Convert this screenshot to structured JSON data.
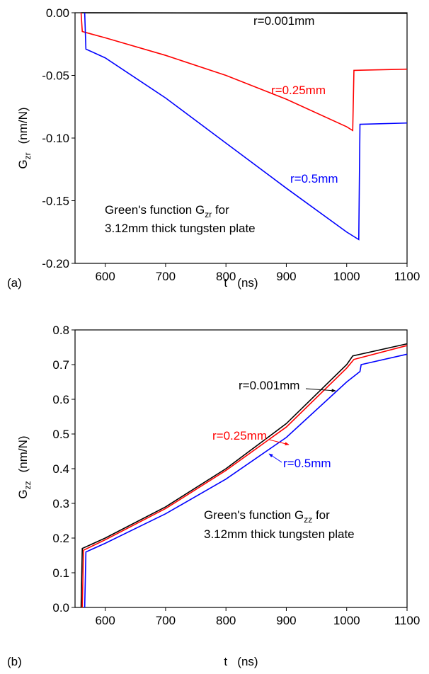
{
  "chart_data": [
    {
      "type": "line",
      "panel_label": "(a)",
      "xlabel": "t   (ns)",
      "ylabel": {
        "symbol": "G",
        "subscript": "zr",
        "unit": "(nm/N)"
      },
      "xlim": [
        550,
        1100
      ],
      "xticks": [
        600,
        700,
        800,
        900,
        1000,
        1100
      ],
      "ylim": [
        -0.2,
        0
      ],
      "yticks": [
        {
          "value": -0.2,
          "label": "-0.20"
        },
        {
          "value": -0.15,
          "label": "-0.15"
        },
        {
          "value": -0.1,
          "label": "-0.10"
        },
        {
          "value": -0.05,
          "label": "-0.05"
        },
        {
          "value": 0,
          "label": "0.00"
        }
      ],
      "series": [
        {
          "name": "r=0.001mm",
          "color": "#000000",
          "x": [
            560,
            1010,
            1100
          ],
          "values": [
            0,
            -0.0005,
            -0.0005
          ]
        },
        {
          "name": "r=0.25mm",
          "color": "#ff0000",
          "x": [
            560,
            562,
            600,
            700,
            800,
            900,
            1000,
            1010,
            1012,
            1100
          ],
          "values": [
            0,
            -0.015,
            -0.02,
            -0.034,
            -0.05,
            -0.069,
            -0.091,
            -0.094,
            -0.046,
            -0.045
          ]
        },
        {
          "name": "r=0.5mm",
          "color": "#0000ff",
          "x": [
            566,
            568,
            600,
            700,
            800,
            900,
            1000,
            1020,
            1022,
            1100
          ],
          "values": [
            0,
            -0.029,
            -0.036,
            -0.068,
            -0.104,
            -0.14,
            -0.175,
            -0.181,
            -0.089,
            -0.088
          ]
        }
      ],
      "annotations": [
        {
          "text": "r=0.001mm",
          "color": "#000000"
        },
        {
          "text": "r=0.25mm",
          "color": "#ff0000"
        },
        {
          "text": "r=0.5mm",
          "color": "#0000ff"
        },
        {
          "text": "Green's function G",
          "subscript": "zr",
          "suffix": " for",
          "color": "#000000"
        },
        {
          "text": "3.12mm thick tungsten plate",
          "color": "#000000"
        }
      ]
    },
    {
      "type": "line",
      "panel_label": "(b)",
      "xlabel": "t   (ns)",
      "ylabel": {
        "symbol": "G",
        "subscript": "zz",
        "unit": "(nm/N)"
      },
      "xlim": [
        550,
        1100
      ],
      "xticks": [
        600,
        700,
        800,
        900,
        1000,
        1100
      ],
      "ylim": [
        0,
        0.8
      ],
      "yticks": [
        {
          "value": 0,
          "label": "0.0"
        },
        0.1,
        0.2,
        0.3,
        0.4,
        0.5,
        0.6,
        0.7,
        0.8
      ],
      "series": [
        {
          "name": "r=0.001mm",
          "color": "#000000",
          "x": [
            560,
            562,
            600,
            700,
            800,
            900,
            1000,
            1010,
            1100
          ],
          "values": [
            0,
            0.17,
            0.2,
            0.29,
            0.4,
            0.53,
            0.7,
            0.725,
            0.76
          ]
        },
        {
          "name": "r=0.25mm",
          "color": "#ff0000",
          "x": [
            562,
            564,
            600,
            700,
            800,
            900,
            1000,
            1012,
            1100
          ],
          "values": [
            0,
            0.165,
            0.195,
            0.285,
            0.395,
            0.52,
            0.69,
            0.715,
            0.755
          ]
        },
        {
          "name": "r=0.5mm",
          "color": "#0000ff",
          "x": [
            566,
            568,
            600,
            700,
            800,
            900,
            1000,
            1022,
            1024,
            1100
          ],
          "values": [
            0,
            0.16,
            0.185,
            0.27,
            0.37,
            0.49,
            0.65,
            0.68,
            0.7,
            0.73
          ]
        }
      ],
      "annotations": [
        {
          "text": "r=0.001mm",
          "color": "#000000"
        },
        {
          "text": "r=0.25mm",
          "color": "#ff0000"
        },
        {
          "text": "r=0.5mm",
          "color": "#0000ff"
        },
        {
          "text": "Green's function G",
          "subscript": "zz",
          "suffix": " for",
          "color": "#000000"
        },
        {
          "text": "3.12mm thick tungsten plate",
          "color": "#000000"
        }
      ]
    }
  ]
}
